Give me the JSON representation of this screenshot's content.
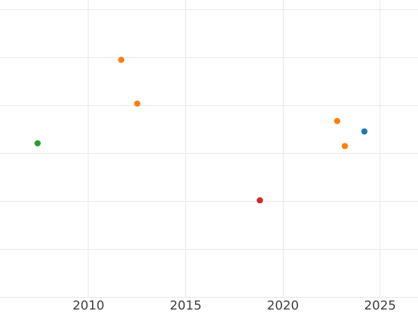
{
  "chart_data": {
    "type": "scatter",
    "title": "",
    "xlabel": "",
    "ylabel": "",
    "grid": true,
    "legend": "none",
    "x_ticks": [
      {
        "value": 2010,
        "label": "2010"
      },
      {
        "value": 2015,
        "label": "2015"
      },
      {
        "value": 2020,
        "label": "2020"
      },
      {
        "value": 2025,
        "label": "2025"
      }
    ],
    "y_gridline_values": [
      0,
      1,
      2,
      3,
      4,
      5,
      6
    ],
    "y_tick_labels_visible": false,
    "xlim": [
      2005.45,
      2026.95
    ],
    "ylim": [
      -0.334,
      6.203
    ],
    "points": [
      {
        "x": 2007.4,
        "y": 3.21,
        "series": "green",
        "color": "#2ca02c"
      },
      {
        "x": 2011.7,
        "y": 4.95,
        "series": "orange",
        "color": "#ff7f0e"
      },
      {
        "x": 2012.5,
        "y": 4.04,
        "series": "orange",
        "color": "#ff7f0e"
      },
      {
        "x": 2018.8,
        "y": 2.02,
        "series": "red",
        "color": "#d62728"
      },
      {
        "x": 2022.8,
        "y": 3.68,
        "series": "orange",
        "color": "#ff7f0e"
      },
      {
        "x": 2023.2,
        "y": 3.15,
        "series": "orange",
        "color": "#ff7f0e"
      },
      {
        "x": 2024.2,
        "y": 3.46,
        "series": "blue",
        "color": "#1f77b4"
      }
    ],
    "marker_diameter_px": 9
  },
  "style": {
    "background_color": "#ffffff",
    "grid_color": "#e7e7e7",
    "tick_label_color": "#404040",
    "series_colors": {
      "blue": "#1f77b4",
      "orange": "#ff7f0e",
      "green": "#2ca02c",
      "red": "#d62728"
    }
  }
}
